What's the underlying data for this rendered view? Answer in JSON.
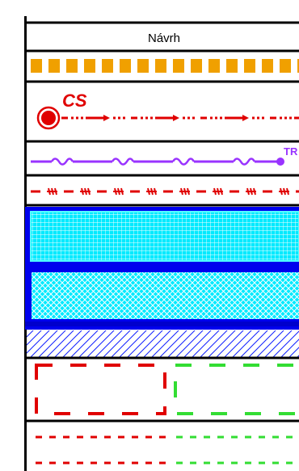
{
  "legend": {
    "title": "Návrh",
    "rows": [
      {
        "name": "orange-block-line",
        "color": "#f0a000"
      },
      {
        "name": "cs-dash-dot-arrow-line",
        "label": "CS",
        "color": "#e00000"
      },
      {
        "name": "purple-tr-line",
        "label": "TR",
        "color": "#9933ff"
      },
      {
        "name": "red-dashed-marker-line",
        "color": "#e00000"
      },
      {
        "name": "cyan-grid-hatch",
        "color": "#00e5ff",
        "border": "#0033ff"
      },
      {
        "name": "cyan-crosshatch",
        "color": "#00e5ff",
        "border": "#0033ff"
      },
      {
        "name": "blue-diagonal-hatch",
        "color": "#0000ff"
      },
      {
        "name": "red-green-dashed-boxes",
        "color": "#e00000",
        "color2": "#33dd33"
      },
      {
        "name": "red-green-short-dash-lines",
        "color": "#e00000",
        "color2": "#33dd33"
      }
    ]
  }
}
